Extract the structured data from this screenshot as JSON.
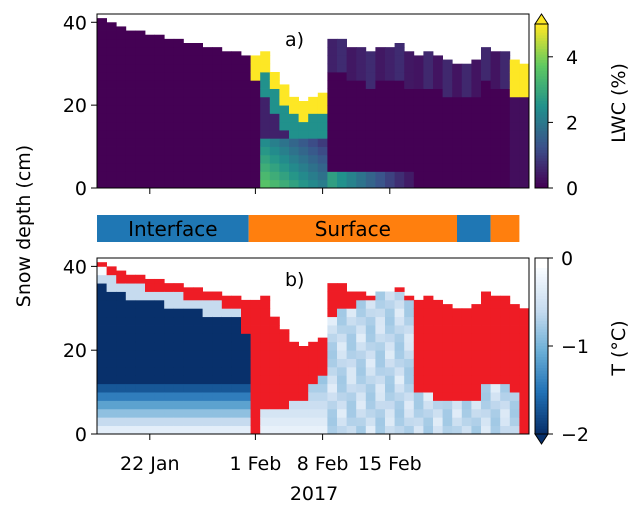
{
  "chart_data": [
    {
      "panel": "a)",
      "type": "heatmap",
      "ylabel": "Snow depth (cm)",
      "yticks": [
        0,
        20,
        40
      ],
      "ylim": [
        0,
        42
      ],
      "colorbar": {
        "label": "LWC (%)",
        "ticks": [
          "0",
          "2",
          "4"
        ],
        "range": [
          0,
          5
        ],
        "extend": "max",
        "colormap": "viridis"
      },
      "column_days": [
        1,
        2,
        3,
        4,
        5,
        6,
        7,
        8,
        9,
        10,
        11,
        12,
        13,
        14,
        15,
        16,
        17,
        18,
        19,
        20,
        21,
        22,
        23,
        24,
        25,
        26,
        27,
        28,
        29,
        30,
        31,
        32,
        33,
        34,
        35,
        36,
        37,
        38,
        39,
        40,
        41,
        42,
        43,
        44,
        45
      ],
      "snow_depth_cm": [
        41,
        40,
        39,
        38,
        38,
        37,
        37,
        36,
        36,
        35,
        35,
        34,
        34,
        33,
        33,
        32,
        32,
        33,
        28,
        25,
        22,
        21,
        22,
        23,
        36,
        36,
        34,
        34,
        33,
        34,
        34,
        35,
        33,
        32,
        33,
        32,
        31,
        30,
        30,
        31,
        34,
        33,
        33,
        31,
        30
      ],
      "lwc_description": "Dry snowpack (LWC ~0%) until 30 Jan; from 31 Jan to about 12 Feb wet layers with LWC up to 5% near the surface and base, decaying afterwards; surface wetting again around 19-20 Feb"
    },
    {
      "type": "bar",
      "categories": [
        "Interface",
        "Surface",
        "Interface",
        "Surface"
      ],
      "spans_days": [
        [
          1,
          16.8
        ],
        [
          16.8,
          38.5
        ],
        [
          38.5,
          42
        ],
        [
          42,
          45
        ]
      ],
      "colors": [
        "#1f77b4",
        "#ff7f0e",
        "#1f77b4",
        "#ff7f0e"
      ]
    },
    {
      "panel": "b)",
      "type": "heatmap",
      "ylabel": "Snow depth (cm)",
      "yticks": [
        0,
        20,
        40
      ],
      "ylim": [
        0,
        42
      ],
      "x": {
        "label": "2017",
        "ticks": [
          "22 Jan",
          "1 Feb",
          "8 Feb",
          "15 Feb"
        ],
        "tick_days": [
          6,
          17,
          24,
          31
        ]
      },
      "colorbar": {
        "label": "T (°C)",
        "ticks": [
          "0",
          "−1",
          "−2"
        ],
        "range": [
          -2,
          0
        ],
        "extend": "min",
        "colormap": "Blues",
        "isothermal_color": "#ee1c25"
      },
      "column_days": [
        1,
        2,
        3,
        4,
        5,
        6,
        7,
        8,
        9,
        10,
        11,
        12,
        13,
        14,
        15,
        16,
        17,
        18,
        19,
        20,
        21,
        22,
        23,
        24,
        25,
        26,
        27,
        28,
        29,
        30,
        31,
        32,
        33,
        34,
        35,
        36,
        37,
        38,
        39,
        40,
        41,
        42,
        43,
        44,
        45
      ],
      "snow_depth_cm": [
        41,
        40,
        39,
        38,
        38,
        37,
        37,
        36,
        36,
        35,
        35,
        34,
        34,
        33,
        33,
        32,
        32,
        33,
        28,
        25,
        22,
        21,
        22,
        23,
        36,
        36,
        34,
        34,
        33,
        34,
        34,
        35,
        33,
        32,
        33,
        32,
        31,
        30,
        30,
        31,
        34,
        33,
        33,
        31,
        30
      ],
      "isothermal_depth_cm": [
        2,
        3,
        4,
        3,
        3,
        3,
        4,
        3,
        3,
        3,
        3,
        3,
        3,
        3,
        4,
        8,
        33,
        28,
        23,
        19,
        15,
        13,
        11,
        9,
        8,
        6,
        4,
        3,
        2,
        1,
        1,
        1,
        1,
        23,
        24,
        24,
        23,
        22,
        22,
        23,
        22,
        22,
        22,
        21,
        30
      ],
      "temperature_description": "Cold snowpack (down to about −2 °C) in January with warmer snow near the ground; isothermal (0 °C) layers after 31 Jan expanding from the surface, with the deeper snowpack warming to near 0 °C in February"
    }
  ]
}
